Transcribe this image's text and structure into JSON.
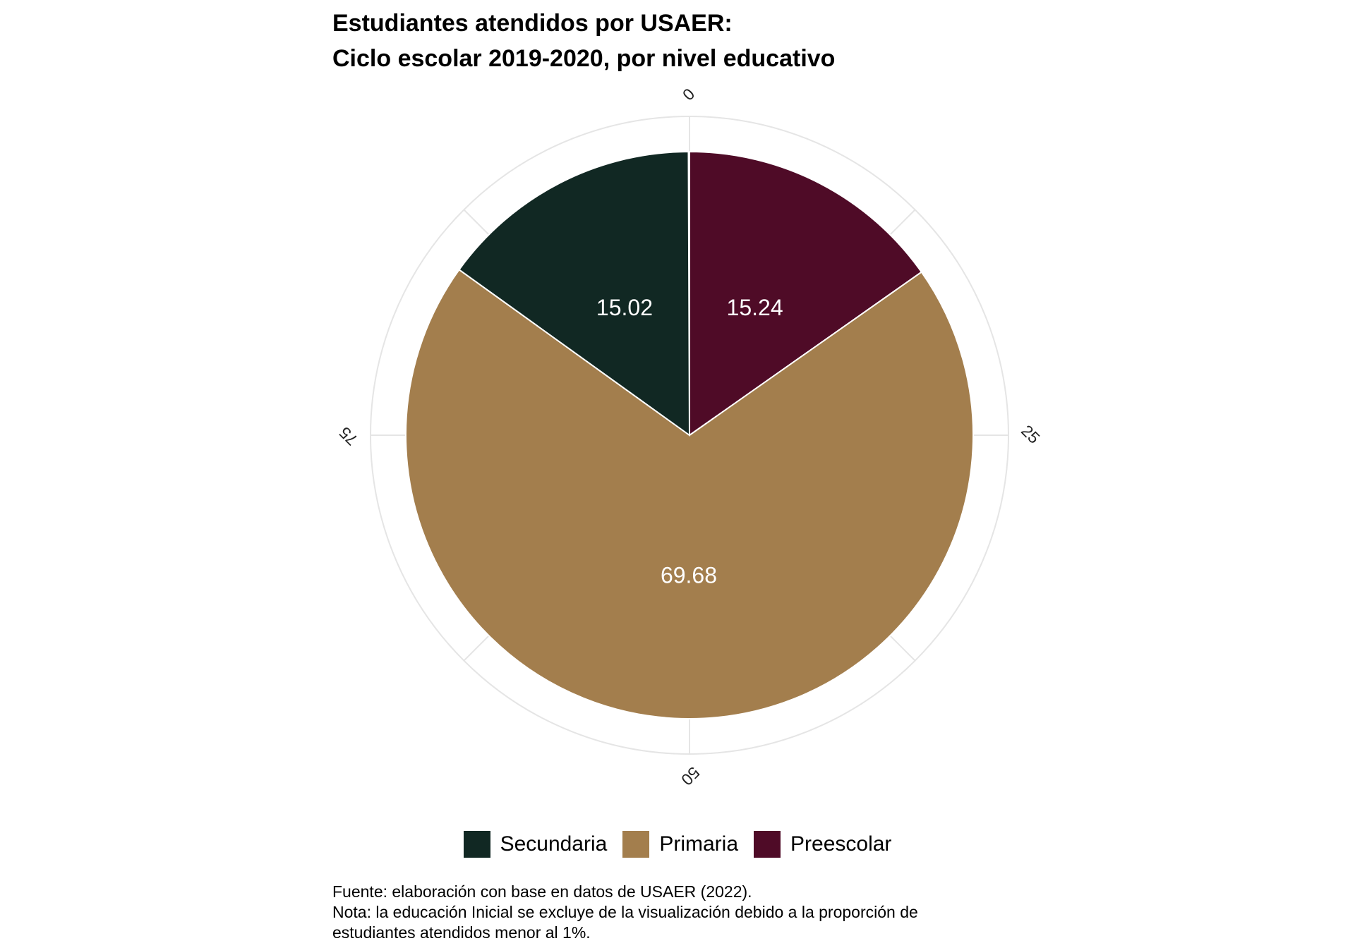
{
  "chart_data": {
    "type": "pie",
    "title": "Estudiantes atendidos por USAER:",
    "subtitle": "Ciclo escolar 2019-2020, por nivel educativo",
    "slices": [
      {
        "name": "Preescolar",
        "value": 15.24,
        "label": "15.24",
        "color": "#4f0b27"
      },
      {
        "name": "Primaria",
        "value": 69.68,
        "label": "69.68",
        "color": "#a37e4d"
      },
      {
        "name": "Secundaria",
        "value": 15.02,
        "label": "15.02",
        "color": "#112823"
      }
    ],
    "axis": {
      "ticks": [
        "0",
        "25",
        "50",
        "75"
      ],
      "tick_values": [
        0,
        25,
        50,
        75
      ],
      "range": [
        0,
        100
      ]
    },
    "legend": {
      "position": "bottom",
      "order": [
        "Secundaria",
        "Primaria",
        "Preescolar"
      ]
    },
    "grid": true
  },
  "caption": {
    "source": "Fuente: elaboración con base en datos de USAER (2022).",
    "note_line1": "Nota: la educación Inicial se excluye de la visualización debido a la proporción de",
    "note_line2": "estudiantes atendidos menor al 1%."
  },
  "colors": {
    "grid": "#e5e5e5",
    "slice_border": "#ffffff",
    "label_text": "#ffffff"
  }
}
